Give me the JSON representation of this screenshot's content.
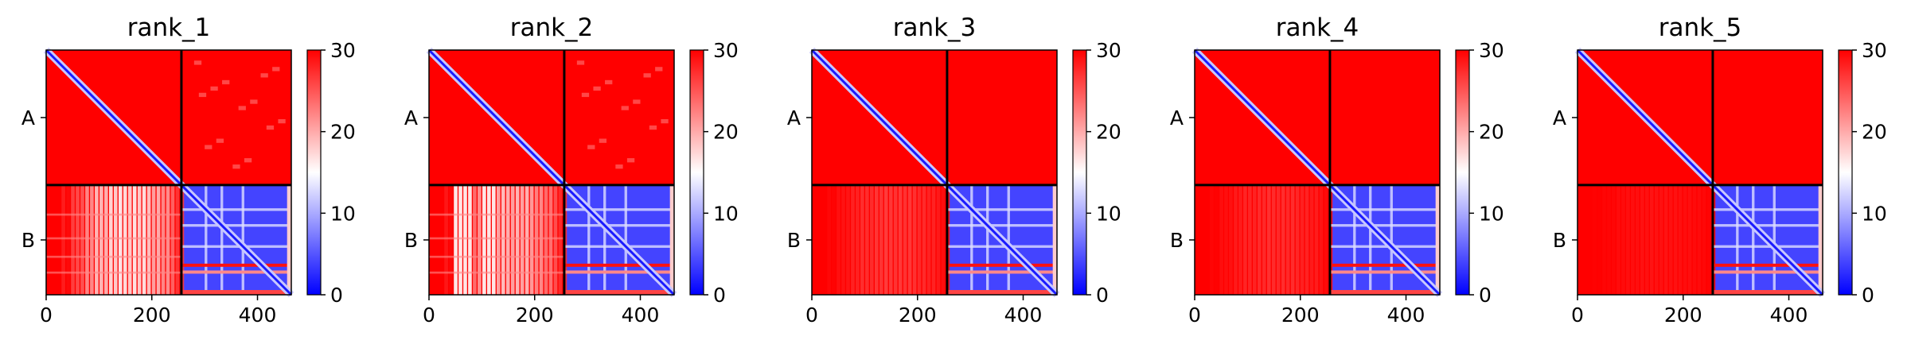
{
  "figure": {
    "colormap": "bwr"
  },
  "chart_data": [
    {
      "type": "heatmap",
      "title": "rank_1",
      "chains": [
        "A",
        "B"
      ],
      "chain_break": 256,
      "length": 464,
      "xticks": [
        0,
        200,
        400
      ],
      "xtick_labels": [
        "0",
        "200",
        "400"
      ],
      "yticks": [
        "A",
        "B"
      ],
      "colorbar": {
        "min": 0,
        "max": 30,
        "ticks": [
          0,
          10,
          20,
          30
        ]
      },
      "blocks": {
        "AA": "mostly 30 with 0 diagonal",
        "AB": "mostly 30 with faint lighter spots",
        "BA": "15-30, lighter vertical bands near residues 60-230",
        "BB": "mostly 0-10 with 0 diagonal and red bands near residues 400-430"
      }
    },
    {
      "type": "heatmap",
      "title": "rank_2",
      "chains": [
        "A",
        "B"
      ],
      "chain_break": 256,
      "length": 464,
      "xticks": [
        0,
        200,
        400
      ],
      "xtick_labels": [
        "0",
        "200",
        "400"
      ],
      "yticks": [
        "A",
        "B"
      ],
      "colorbar": {
        "min": 0,
        "max": 30,
        "ticks": [
          0,
          10,
          20,
          30
        ]
      },
      "blocks": {
        "AA": "mostly 30 with 0 diagonal",
        "AB": "mostly 30 with faint lighter spots",
        "BA": "18-30, lighter vertical bands",
        "BB": "mostly 0-10 with 0 diagonal and red bands near residues 400-430"
      }
    },
    {
      "type": "heatmap",
      "title": "rank_3",
      "chains": [
        "A",
        "B"
      ],
      "chain_break": 256,
      "length": 464,
      "xticks": [
        0,
        200,
        400
      ],
      "xtick_labels": [
        "0",
        "200",
        "400"
      ],
      "yticks": [
        "A",
        "B"
      ],
      "colorbar": {
        "min": 0,
        "max": 30,
        "ticks": [
          0,
          10,
          20,
          30
        ]
      },
      "blocks": {
        "AA": "mostly 30 with 0 diagonal",
        "AB": "30",
        "BA": "mostly 30, faint bands",
        "BB": "mostly 0-10 with 0 diagonal and red bands near residues 400-430"
      }
    },
    {
      "type": "heatmap",
      "title": "rank_4",
      "chains": [
        "A",
        "B"
      ],
      "chain_break": 256,
      "length": 464,
      "xticks": [
        0,
        200,
        400
      ],
      "xtick_labels": [
        "0",
        "200",
        "400"
      ],
      "yticks": [
        "A",
        "B"
      ],
      "colorbar": {
        "min": 0,
        "max": 30,
        "ticks": [
          0,
          10,
          20,
          30
        ]
      },
      "blocks": {
        "AA": "mostly 30 with 0 diagonal",
        "AB": "30",
        "BA": "mostly 30, faint bands",
        "BB": "mostly 0-10 with 0 diagonal and red bands near residues 400-430"
      }
    },
    {
      "type": "heatmap",
      "title": "rank_5",
      "chains": [
        "A",
        "B"
      ],
      "chain_break": 256,
      "length": 464,
      "xticks": [
        0,
        200,
        400
      ],
      "xtick_labels": [
        "0",
        "200",
        "400"
      ],
      "yticks": [
        "A",
        "B"
      ],
      "colorbar": {
        "min": 0,
        "max": 30,
        "ticks": [
          0,
          10,
          20,
          30
        ]
      },
      "blocks": {
        "AA": "mostly 30 with 0 diagonal",
        "AB": "30",
        "BA": "30",
        "BB": "mostly 0-10 with 0 diagonal and red bands near residues 400-430"
      }
    }
  ]
}
